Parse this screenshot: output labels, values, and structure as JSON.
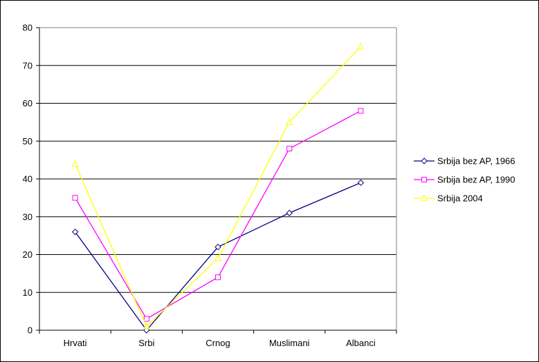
{
  "chart_data": {
    "type": "line",
    "title": "",
    "xlabel": "",
    "ylabel": "",
    "categories": [
      "Hrvati",
      "Srbi",
      "Crnog",
      "Muslimani",
      "Albanci"
    ],
    "ylim": [
      0,
      80
    ],
    "yticks": [
      0,
      10,
      20,
      30,
      40,
      50,
      60,
      70,
      80
    ],
    "grid": true,
    "legend_position": "right",
    "series": [
      {
        "name": "Srbija bez AP, 1966",
        "values": [
          26,
          0,
          22,
          31,
          39
        ],
        "color": "#000080",
        "marker": "diamond"
      },
      {
        "name": "Srbija bez AP, 1990",
        "values": [
          35,
          3,
          14,
          48,
          58
        ],
        "color": "#ff00ff",
        "marker": "square"
      },
      {
        "name": "Srbija 2004",
        "values": [
          44,
          1,
          19,
          55,
          75
        ],
        "color": "#ffff00",
        "marker": "triangle"
      }
    ]
  }
}
